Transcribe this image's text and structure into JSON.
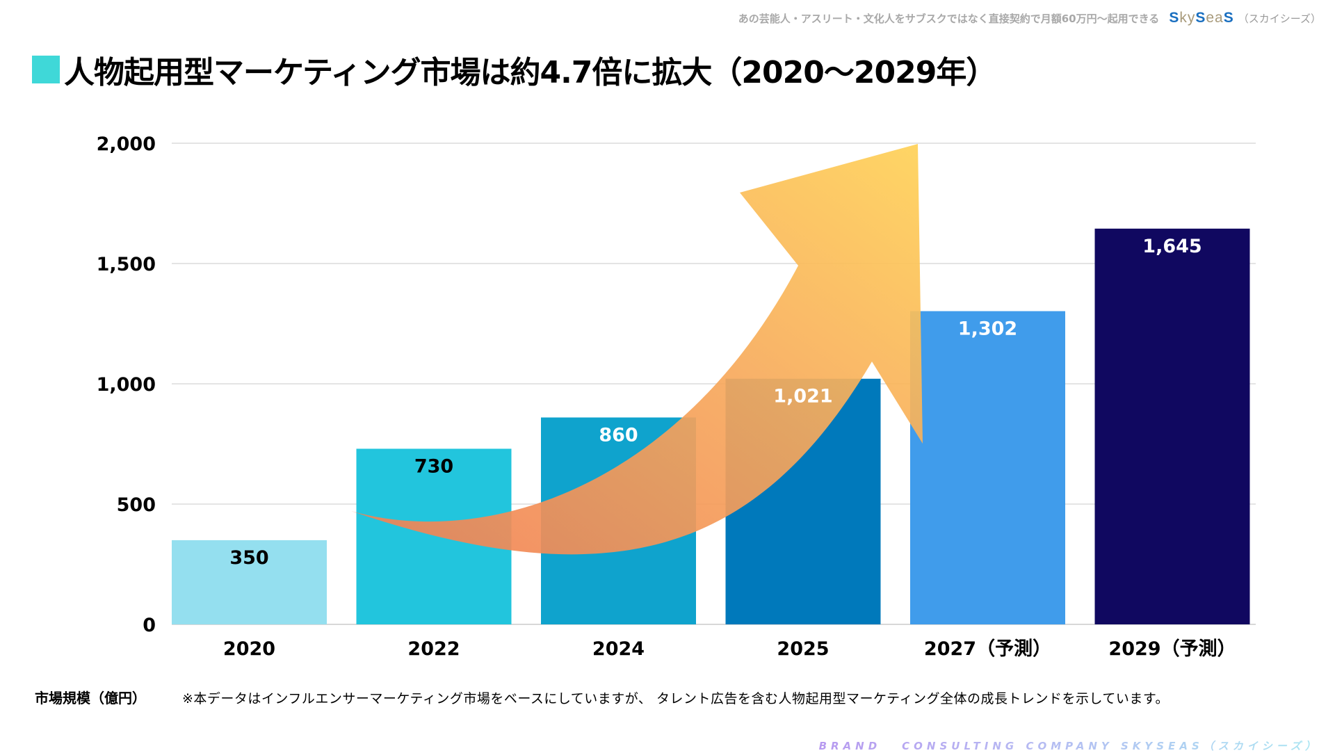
{
  "header": {
    "tagline": "あの芸能人・アスリート・文化人をサブスクではなく直接契約で月額60万円〜起用できる",
    "logo_parts": [
      "S",
      "ky",
      "S",
      "ea",
      "S"
    ],
    "logo_subtitle": "（スカイシーズ）",
    "title": "人物起用型マーケティング市場は約4.7倍に拡大（2020〜2029年）",
    "title_marker_color": "#3fd8d8"
  },
  "chart_data": {
    "type": "bar",
    "title": "人物起用型マーケティング市場は約4.7倍に拡大（2020〜2029年）",
    "xlabel": "",
    "ylabel": "市場規模（億円）",
    "categories": [
      "2020",
      "2022",
      "2024",
      "2025",
      "2027（予測）",
      "2029（予測）"
    ],
    "values": [
      350,
      730,
      860,
      1021,
      1302,
      1645
    ],
    "value_labels": [
      "350",
      "730",
      "860",
      "1,021",
      "1,302",
      "1,645"
    ],
    "bar_colors": [
      "#94dfef",
      "#22c5dd",
      "#0fa3cd",
      "#0079bb",
      "#409ceb",
      "#100860"
    ],
    "label_colors": [
      "#000000",
      "#000000",
      "#ffffff",
      "#ffffff",
      "#ffffff",
      "#ffffff"
    ],
    "ylim": [
      0,
      2000
    ],
    "yticks": [
      0,
      500,
      1000,
      1500,
      2000
    ],
    "ytick_labels": [
      "0",
      "500",
      "1,000",
      "1,500",
      "2,000"
    ],
    "grid": true,
    "legend": "none",
    "annotations": [
      "upward growth arrow (orange to yellow gradient) from 2022 to 2027"
    ]
  },
  "footer": {
    "unit_label": "市場規模（億円）",
    "note": "※本データはインフルエンサーマーケティング市場をベースにしていますが、 タレント広告を含む人物起用型マーケティング全体の成長トレンドを示しています。",
    "brand_word": "BRAND",
    "brand_rest": "CONSULTING COMPANY SKYSEAS（スカイシーズ）"
  }
}
